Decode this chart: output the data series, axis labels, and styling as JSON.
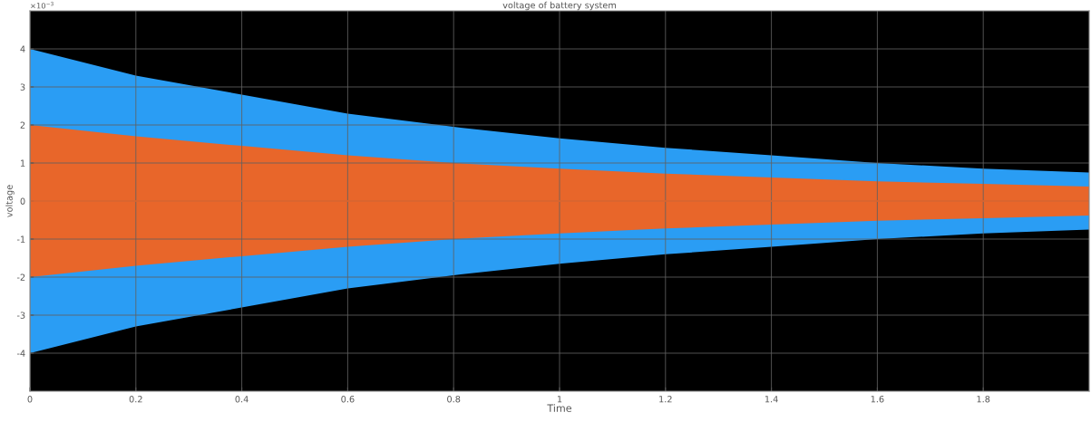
{
  "chart_data": {
    "type": "line",
    "title": "voltage of battery system",
    "xlabel": "Time",
    "ylabel": "voltage",
    "annotations": [
      "×10$^{−3}$"
    ],
    "x": [
      0,
      0.2,
      0.4,
      0.6,
      0.8,
      1.0,
      1.2,
      1.4,
      1.6,
      1.8,
      2.0
    ],
    "series": [
      {
        "color": "#2a9df4",
        "values": [
          null,
          null,
          null,
          null,
          null,
          null,
          null,
          null,
          null,
          null,
          null
        ],
        "upper": [
          4.0,
          3.3,
          2.8,
          2.3,
          1.95,
          1.65,
          1.4,
          1.2,
          1.0,
          0.85,
          0.75
        ],
        "lower": [
          -4.0,
          -3.3,
          -2.8,
          -2.3,
          -1.95,
          -1.65,
          -1.4,
          -1.2,
          -1.0,
          -0.85,
          -0.75
        ]
      },
      {
        "color": "#e8662a",
        "values": [
          0,
          0,
          0,
          0,
          0,
          0,
          0,
          0,
          0,
          0,
          0
        ],
        "upper": [
          2.0,
          1.7,
          1.45,
          1.2,
          1.0,
          0.85,
          0.72,
          0.62,
          0.52,
          0.45,
          0.38
        ],
        "lower": [
          -2.0,
          -1.7,
          -1.45,
          -1.2,
          -1.0,
          -0.85,
          -0.72,
          -0.62,
          -0.52,
          -0.45,
          -0.38
        ]
      }
    ],
    "xlim": [
      0,
      2
    ],
    "xticks": [
      0,
      0.2,
      0.4,
      0.6,
      0.8,
      1,
      1.2,
      1.4,
      1.6,
      1.8
    ],
    "ylim": [
      -5,
      5
    ],
    "yticks": [
      -4,
      -3,
      -2,
      -1,
      0,
      1,
      2,
      3,
      4
    ],
    "grid": true
  }
}
